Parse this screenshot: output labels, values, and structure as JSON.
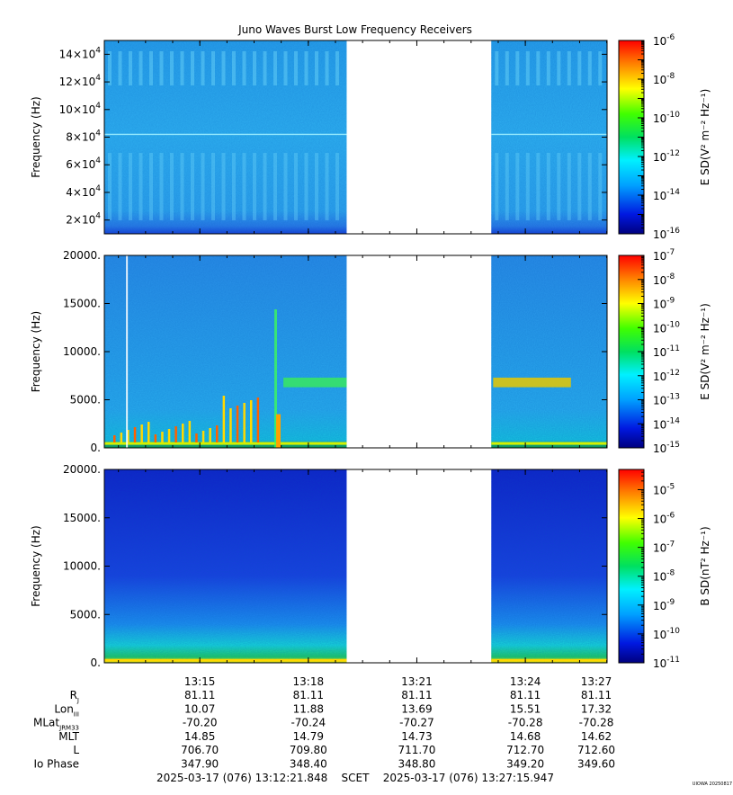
{
  "chart_data": {
    "type": "heatmap",
    "title": "Juno Waves Burst Low Frequency Receivers",
    "panels": [
      {
        "id": "panel1",
        "ylabel": "Frequency (Hz)",
        "ylim": [
          10000,
          150000
        ],
        "yticks": [
          {
            "value": 20000,
            "base": "2×10",
            "exp": "4"
          },
          {
            "value": 40000,
            "base": "4×10",
            "exp": "4"
          },
          {
            "value": 60000,
            "base": "6×10",
            "exp": "4"
          },
          {
            "value": 80000,
            "base": "8×10",
            "exp": "4"
          },
          {
            "value": 100000,
            "base": "10×10",
            "exp": "4"
          },
          {
            "value": 120000,
            "base": "12×10",
            "exp": "4"
          },
          {
            "value": 140000,
            "base": "14×10",
            "exp": "4"
          }
        ],
        "colorbar": {
          "label": "E SD(V² m⁻² Hz⁻¹)",
          "exp_min": -16,
          "exp_max": -6,
          "labels": [
            {
              "exp": -6,
              "text": "-6"
            },
            {
              "exp": -8,
              "text": "-8"
            },
            {
              "exp": -10,
              "text": "-10"
            },
            {
              "exp": -12,
              "text": "-12"
            },
            {
              "exp": -14,
              "text": "-14"
            },
            {
              "exp": -16,
              "text": "-16"
            }
          ]
        }
      },
      {
        "id": "panel2",
        "ylabel": "Frequency (Hz)",
        "ylim": [
          0,
          20000
        ],
        "yticks": [
          {
            "value": 0,
            "text": "0."
          },
          {
            "value": 5000,
            "text": "5000."
          },
          {
            "value": 10000,
            "text": "10000."
          },
          {
            "value": 15000,
            "text": "15000."
          },
          {
            "value": 20000,
            "text": "20000."
          }
        ],
        "colorbar": {
          "label": "E SD(V² m⁻² Hz⁻¹)",
          "exp_min": -15,
          "exp_max": -7,
          "labels": [
            {
              "exp": -7,
              "text": "-7"
            },
            {
              "exp": -8,
              "text": "-8"
            },
            {
              "exp": -9,
              "text": "-9"
            },
            {
              "exp": -10,
              "text": "-10"
            },
            {
              "exp": -11,
              "text": "-11"
            },
            {
              "exp": -12,
              "text": "-12"
            },
            {
              "exp": -13,
              "text": "-13"
            },
            {
              "exp": -14,
              "text": "-14"
            },
            {
              "exp": -15,
              "text": "-15"
            }
          ]
        }
      },
      {
        "id": "panel3",
        "ylabel": "Frequency (Hz)",
        "ylim": [
          0,
          20000
        ],
        "yticks": [
          {
            "value": 0,
            "text": "0."
          },
          {
            "value": 5000,
            "text": "5000."
          },
          {
            "value": 10000,
            "text": "10000."
          },
          {
            "value": 15000,
            "text": "15000."
          },
          {
            "value": 20000,
            "text": "20000."
          }
        ],
        "colorbar": {
          "label": "B SD(nT² Hz⁻¹)",
          "exp_min": -11,
          "exp_max": -4.3,
          "labels": [
            {
              "exp": -5,
              "text": "-5"
            },
            {
              "exp": -6,
              "text": "-6"
            },
            {
              "exp": -7,
              "text": "-7"
            },
            {
              "exp": -8,
              "text": "-8"
            },
            {
              "exp": -9,
              "text": "-9"
            },
            {
              "exp": -10,
              "text": "-10"
            },
            {
              "exp": -11,
              "text": "-11"
            }
          ]
        }
      }
    ],
    "x": {
      "range_minutes": [
        0,
        13.9
      ],
      "start": "13:12:21.848",
      "tick_labels": [
        {
          "t": 2.64,
          "label": "13:15"
        },
        {
          "t": 5.64,
          "label": "13:18"
        },
        {
          "t": 8.64,
          "label": "13:21"
        },
        {
          "t": 11.64,
          "label": "13:24"
        },
        {
          "t": 14.64,
          "label": "13:27"
        }
      ],
      "minor_step": 0.75,
      "minor_first": 0.39,
      "data_segments_minutes": [
        [
          0,
          6.7
        ],
        [
          10.7,
          13.9
        ]
      ]
    },
    "ephemeris": {
      "rows": [
        {
          "label": "R",
          "sub": "J",
          "values": [
            "81.11",
            "81.11",
            "81.11",
            "81.11",
            "81.11"
          ]
        },
        {
          "label": "Lon",
          "sub": "III",
          "values": [
            "10.07",
            "11.88",
            "13.69",
            "15.51",
            "17.32"
          ]
        },
        {
          "label": "MLat",
          "sub": "JRM33",
          "values": [
            "-70.20",
            "-70.24",
            "-70.27",
            "-70.28",
            "-70.28"
          ]
        },
        {
          "label": "MLT",
          "sub": "",
          "values": [
            "14.85",
            "14.79",
            "14.73",
            "14.68",
            "14.62"
          ]
        },
        {
          "label": "L",
          "sub": "",
          "values": [
            "706.70",
            "709.80",
            "711.70",
            "712.70",
            "712.60"
          ]
        },
        {
          "label": "Io Phase",
          "sub": "",
          "values": [
            "347.90",
            "348.40",
            "348.80",
            "349.20",
            "349.60"
          ]
        }
      ]
    },
    "time_span": "2025-03-17 (076) 13:12:21.848    SCET    2025-03-17 (076) 13:27:15.947",
    "stamp": "UIOWA 20250817"
  }
}
